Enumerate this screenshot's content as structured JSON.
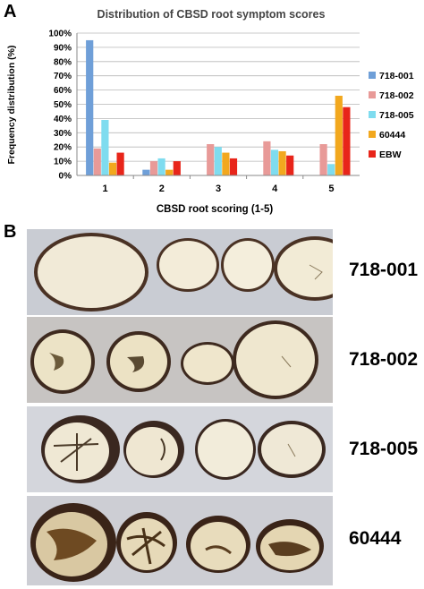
{
  "panels": {
    "a": "A",
    "b": "B"
  },
  "chart_data": {
    "type": "bar",
    "title": "Distribution of CBSD root symptom scores",
    "xlabel": "CBSD root scoring (1-5)",
    "ylabel": "Frequency distribution (%)",
    "categories": [
      "1",
      "2",
      "3",
      "4",
      "5"
    ],
    "ylim": [
      0,
      100
    ],
    "yticks": [
      "0%",
      "10%",
      "20%",
      "30%",
      "40%",
      "50%",
      "60%",
      "70%",
      "80%",
      "90%",
      "100%"
    ],
    "grid": true,
    "legend_position": "right",
    "series": [
      {
        "name": "718-001",
        "color": "#6f9fd8",
        "values": [
          95,
          4,
          0,
          0,
          0
        ]
      },
      {
        "name": "718-002",
        "color": "#e89a98",
        "values": [
          19,
          10,
          22,
          24,
          22
        ]
      },
      {
        "name": "718-005",
        "color": "#7fdcef",
        "values": [
          39,
          12,
          20,
          18,
          8
        ]
      },
      {
        "name": "60444",
        "color": "#f2a81e",
        "values": [
          9,
          4,
          16,
          17,
          56
        ]
      },
      {
        "name": "EBW",
        "color": "#e8251a",
        "values": [
          16,
          10,
          12,
          14,
          48
        ]
      }
    ]
  },
  "photo_rows": [
    {
      "label": "718-001"
    },
    {
      "label": "718-002"
    },
    {
      "label": "718-005"
    },
    {
      "label": "60444"
    }
  ]
}
